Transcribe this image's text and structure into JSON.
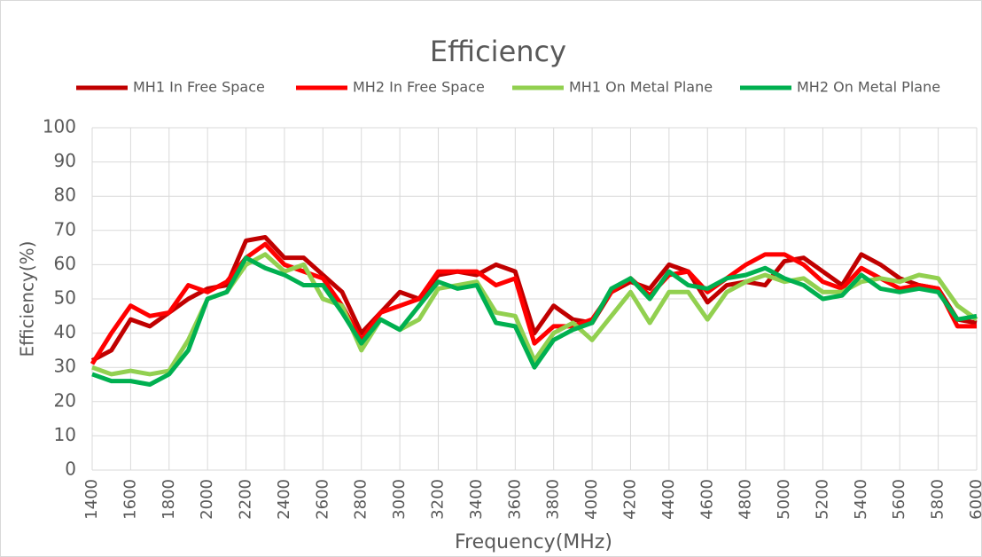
{
  "chart_data": {
    "type": "line",
    "title": "Efficiency",
    "x_label": "Frequency(MHz)",
    "y_label": "Efficiency(%)",
    "x": [
      1400,
      1500,
      1600,
      1700,
      1800,
      1900,
      2000,
      2100,
      2200,
      2300,
      2400,
      2500,
      2600,
      2700,
      2800,
      2900,
      3000,
      3100,
      3200,
      3300,
      3400,
      3500,
      3600,
      3700,
      3800,
      3900,
      4000,
      4100,
      4200,
      4300,
      4400,
      4500,
      4600,
      4700,
      4800,
      4900,
      5000,
      5100,
      5200,
      5300,
      5400,
      5500,
      5600,
      5700,
      5800,
      5900,
      6000
    ],
    "series": [
      {
        "name": "MH1 In Free Space",
        "color": "#c00000",
        "values": [
          32,
          35,
          44,
          42,
          46,
          50,
          53,
          54,
          67,
          68,
          62,
          62,
          57,
          52,
          40,
          46,
          52,
          50,
          57,
          58,
          57,
          60,
          58,
          40,
          48,
          44,
          43,
          52,
          55,
          53,
          60,
          58,
          49,
          54,
          55,
          54,
          61,
          62,
          58,
          54,
          63,
          60,
          56,
          54,
          53,
          44,
          43
        ]
      },
      {
        "name": "MH2 In Free Space",
        "color": "#ff0000",
        "values": [
          31,
          40,
          48,
          45,
          46,
          54,
          52,
          55,
          62,
          66,
          60,
          58,
          56,
          48,
          38,
          46,
          48,
          50,
          58,
          58,
          58,
          54,
          56,
          37,
          42,
          42,
          44,
          52,
          56,
          51,
          57,
          58,
          52,
          56,
          60,
          63,
          63,
          60,
          55,
          53,
          59,
          56,
          53,
          54,
          53,
          42,
          42
        ]
      },
      {
        "name": "MH1 On Metal Plane",
        "color": "#92d050",
        "values": [
          30,
          28,
          29,
          28,
          29,
          38,
          50,
          52,
          60,
          63,
          58,
          60,
          50,
          48,
          35,
          44,
          41,
          44,
          53,
          54,
          55,
          46,
          45,
          32,
          40,
          43,
          38,
          45,
          52,
          43,
          52,
          52,
          44,
          52,
          55,
          57,
          55,
          56,
          52,
          52,
          55,
          56,
          55,
          57,
          56,
          48,
          44
        ]
      },
      {
        "name": "MH2 On Metal Plane",
        "color": "#00b050",
        "values": [
          28,
          26,
          26,
          25,
          28,
          35,
          50,
          52,
          62,
          59,
          57,
          54,
          54,
          46,
          37,
          44,
          41,
          48,
          55,
          53,
          54,
          43,
          42,
          30,
          38,
          41,
          43,
          53,
          56,
          50,
          58,
          54,
          53,
          56,
          57,
          59,
          56,
          54,
          50,
          51,
          57,
          53,
          52,
          53,
          52,
          44,
          45
        ]
      }
    ],
    "xlim": [
      1400,
      6000
    ],
    "xticks": [
      1400,
      1600,
      1800,
      2000,
      2200,
      2400,
      2600,
      2800,
      3000,
      3200,
      3400,
      3600,
      3800,
      4000,
      4200,
      4400,
      4600,
      4800,
      5000,
      5200,
      5400,
      5600,
      5800,
      6000
    ],
    "ylim": [
      0,
      100
    ],
    "yticks": [
      0,
      10,
      20,
      30,
      40,
      50,
      60,
      70,
      80,
      90,
      100
    ],
    "grid": true,
    "legend": "top"
  }
}
